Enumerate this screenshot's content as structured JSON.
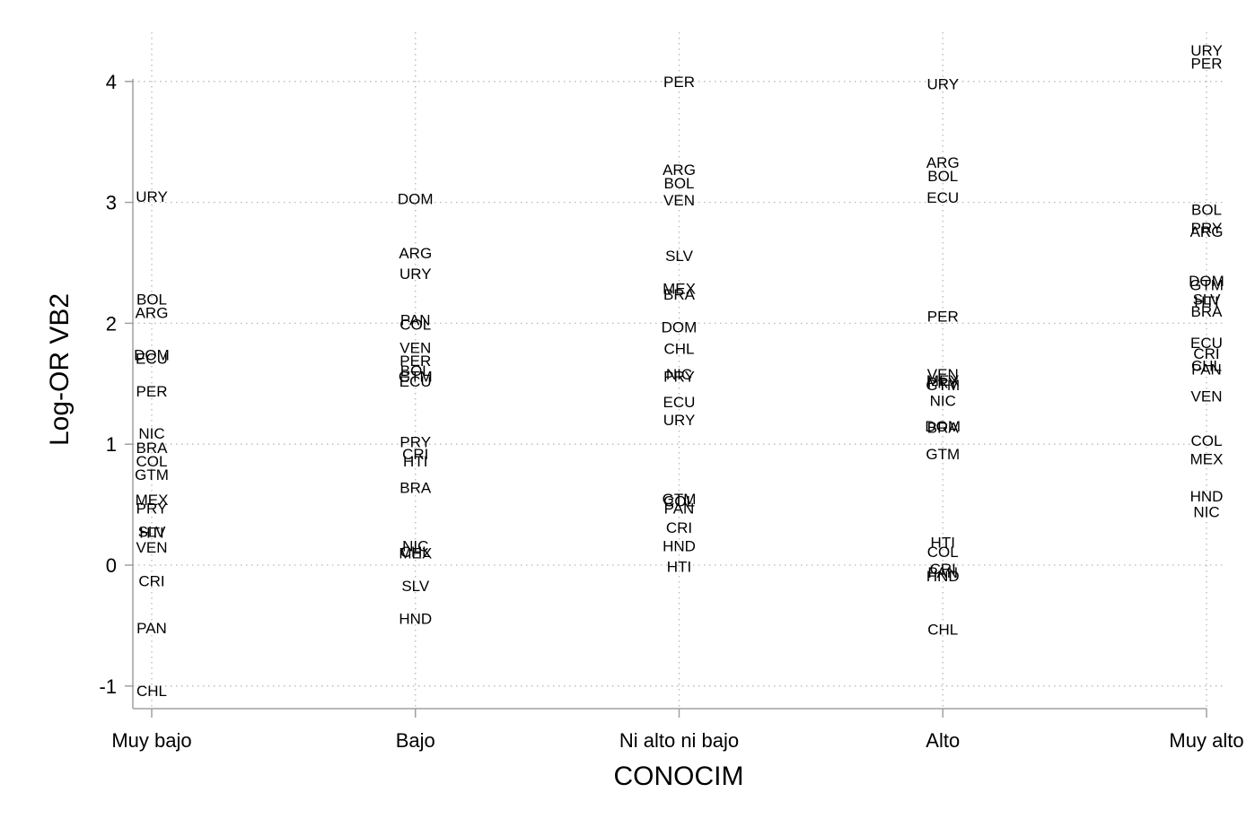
{
  "chart_data": {
    "type": "scatter",
    "marker": "country-code labels",
    "xlabel": "CONOCIM",
    "ylabel": "Log-OR VB2",
    "categories": [
      "Muy bajo",
      "Bajo",
      "Ni alto ni bajo",
      "Alto",
      "Muy alto"
    ],
    "yticks": [
      "-1",
      "0",
      "1",
      "2",
      "3",
      "4"
    ],
    "ylim": [
      -1.2,
      4.4
    ],
    "grid": true,
    "points": [
      {
        "x": "Muy bajo",
        "label": "URY",
        "y": 3.05
      },
      {
        "x": "Muy bajo",
        "label": "BOL",
        "y": 2.2
      },
      {
        "x": "Muy bajo",
        "label": "ARG",
        "y": 2.09
      },
      {
        "x": "Muy bajo",
        "label": "DOM",
        "y": 1.74
      },
      {
        "x": "Muy bajo",
        "label": "ECU",
        "y": 1.71
      },
      {
        "x": "Muy bajo",
        "label": "PER",
        "y": 1.44
      },
      {
        "x": "Muy bajo",
        "label": "NIC",
        "y": 1.09
      },
      {
        "x": "Muy bajo",
        "label": "BRA",
        "y": 0.97
      },
      {
        "x": "Muy bajo",
        "label": "COL",
        "y": 0.86
      },
      {
        "x": "Muy bajo",
        "label": "GTM",
        "y": 0.75
      },
      {
        "x": "Muy bajo",
        "label": "MEX",
        "y": 0.54
      },
      {
        "x": "Muy bajo",
        "label": "PRY",
        "y": 0.47
      },
      {
        "x": "Muy bajo",
        "label": "SLV",
        "y": 0.28
      },
      {
        "x": "Muy bajo",
        "label": "HTI",
        "y": 0.27
      },
      {
        "x": "Muy bajo",
        "label": "VEN",
        "y": 0.15
      },
      {
        "x": "Muy bajo",
        "label": "CRI",
        "y": -0.13
      },
      {
        "x": "Muy bajo",
        "label": "PAN",
        "y": -0.52
      },
      {
        "x": "Muy bajo",
        "label": "CHL",
        "y": -1.04
      },
      {
        "x": "Bajo",
        "label": "DOM",
        "y": 3.03
      },
      {
        "x": "Bajo",
        "label": "ARG",
        "y": 2.58
      },
      {
        "x": "Bajo",
        "label": "URY",
        "y": 2.41
      },
      {
        "x": "Bajo",
        "label": "PAN",
        "y": 2.03
      },
      {
        "x": "Bajo",
        "label": "COL",
        "y": 1.99
      },
      {
        "x": "Bajo",
        "label": "VEN",
        "y": 1.8
      },
      {
        "x": "Bajo",
        "label": "PER",
        "y": 1.69
      },
      {
        "x": "Bajo",
        "label": "BOL",
        "y": 1.61
      },
      {
        "x": "Bajo",
        "label": "GTM",
        "y": 1.56
      },
      {
        "x": "Bajo",
        "label": "ECU",
        "y": 1.52
      },
      {
        "x": "Bajo",
        "label": "PRY",
        "y": 1.02
      },
      {
        "x": "Bajo",
        "label": "CRI",
        "y": 0.92
      },
      {
        "x": "Bajo",
        "label": "HTI",
        "y": 0.86
      },
      {
        "x": "Bajo",
        "label": "BRA",
        "y": 0.64
      },
      {
        "x": "Bajo",
        "label": "NIC",
        "y": 0.16
      },
      {
        "x": "Bajo",
        "label": "CHL",
        "y": 0.11
      },
      {
        "x": "Bajo",
        "label": "MEX",
        "y": 0.1
      },
      {
        "x": "Bajo",
        "label": "SLV",
        "y": -0.17
      },
      {
        "x": "Bajo",
        "label": "HND",
        "y": -0.44
      },
      {
        "x": "Ni alto ni bajo",
        "label": "PER",
        "y": 4.0
      },
      {
        "x": "Ni alto ni bajo",
        "label": "ARG",
        "y": 3.27
      },
      {
        "x": "Ni alto ni bajo",
        "label": "BOL",
        "y": 3.16
      },
      {
        "x": "Ni alto ni bajo",
        "label": "VEN",
        "y": 3.02
      },
      {
        "x": "Ni alto ni bajo",
        "label": "SLV",
        "y": 2.56
      },
      {
        "x": "Ni alto ni bajo",
        "label": "MEX",
        "y": 2.29
      },
      {
        "x": "Ni alto ni bajo",
        "label": "BRA",
        "y": 2.24
      },
      {
        "x": "Ni alto ni bajo",
        "label": "DOM",
        "y": 1.97
      },
      {
        "x": "Ni alto ni bajo",
        "label": "CHL",
        "y": 1.79
      },
      {
        "x": "Ni alto ni bajo",
        "label": "NIC",
        "y": 1.58
      },
      {
        "x": "Ni alto ni bajo",
        "label": "PRY",
        "y": 1.56
      },
      {
        "x": "Ni alto ni bajo",
        "label": "ECU",
        "y": 1.35
      },
      {
        "x": "Ni alto ni bajo",
        "label": "URY",
        "y": 1.2
      },
      {
        "x": "Ni alto ni bajo",
        "label": "GTM",
        "y": 0.55
      },
      {
        "x": "Ni alto ni bajo",
        "label": "COL",
        "y": 0.53
      },
      {
        "x": "Ni alto ni bajo",
        "label": "PAN",
        "y": 0.47
      },
      {
        "x": "Ni alto ni bajo",
        "label": "CRI",
        "y": 0.31
      },
      {
        "x": "Ni alto ni bajo",
        "label": "HND",
        "y": 0.16
      },
      {
        "x": "Ni alto ni bajo",
        "label": "HTI",
        "y": -0.01
      },
      {
        "x": "Alto",
        "label": "URY",
        "y": 3.98
      },
      {
        "x": "Alto",
        "label": "ARG",
        "y": 3.33
      },
      {
        "x": "Alto",
        "label": "BOL",
        "y": 3.22
      },
      {
        "x": "Alto",
        "label": "ECU",
        "y": 3.04
      },
      {
        "x": "Alto",
        "label": "PER",
        "y": 2.06
      },
      {
        "x": "Alto",
        "label": "VEN",
        "y": 1.58
      },
      {
        "x": "Alto",
        "label": "MEX",
        "y": 1.53
      },
      {
        "x": "Alto",
        "label": "PRY",
        "y": 1.51
      },
      {
        "x": "Alto",
        "label": "GTM",
        "y": 1.49
      },
      {
        "x": "Alto",
        "label": "NIC",
        "y": 1.36
      },
      {
        "x": "Alto",
        "label": "DOM",
        "y": 1.15
      },
      {
        "x": "Alto",
        "label": "BRA",
        "y": 1.14
      },
      {
        "x": "Alto",
        "label": "GTM",
        "y": 0.92
      },
      {
        "x": "Alto",
        "label": "HTI",
        "y": 0.19
      },
      {
        "x": "Alto",
        "label": "COL",
        "y": 0.11
      },
      {
        "x": "Alto",
        "label": "CRI",
        "y": -0.03
      },
      {
        "x": "Alto",
        "label": "PAN",
        "y": -0.06
      },
      {
        "x": "Alto",
        "label": "HND",
        "y": -0.09
      },
      {
        "x": "Alto",
        "label": "CHL",
        "y": -0.53
      },
      {
        "x": "Muy alto",
        "label": "URY",
        "y": 4.26
      },
      {
        "x": "Muy alto",
        "label": "PER",
        "y": 4.15
      },
      {
        "x": "Muy alto",
        "label": "BOL",
        "y": 2.94
      },
      {
        "x": "Muy alto",
        "label": "PRY",
        "y": 2.79
      },
      {
        "x": "Muy alto",
        "label": "ARG",
        "y": 2.76
      },
      {
        "x": "Muy alto",
        "label": "DOM",
        "y": 2.35
      },
      {
        "x": "Muy alto",
        "label": "GTM",
        "y": 2.32
      },
      {
        "x": "Muy alto",
        "label": "SLV",
        "y": 2.2
      },
      {
        "x": "Muy alto",
        "label": "HTI",
        "y": 2.18
      },
      {
        "x": "Muy alto",
        "label": "BRA",
        "y": 2.1
      },
      {
        "x": "Muy alto",
        "label": "ECU",
        "y": 1.84
      },
      {
        "x": "Muy alto",
        "label": "CRI",
        "y": 1.75
      },
      {
        "x": "Muy alto",
        "label": "CHL",
        "y": 1.65
      },
      {
        "x": "Muy alto",
        "label": "PAN",
        "y": 1.62
      },
      {
        "x": "Muy alto",
        "label": "VEN",
        "y": 1.4
      },
      {
        "x": "Muy alto",
        "label": "COL",
        "y": 1.03
      },
      {
        "x": "Muy alto",
        "label": "MEX",
        "y": 0.88
      },
      {
        "x": "Muy alto",
        "label": "HND",
        "y": 0.57
      },
      {
        "x": "Muy alto",
        "label": "NIC",
        "y": 0.44
      }
    ]
  }
}
